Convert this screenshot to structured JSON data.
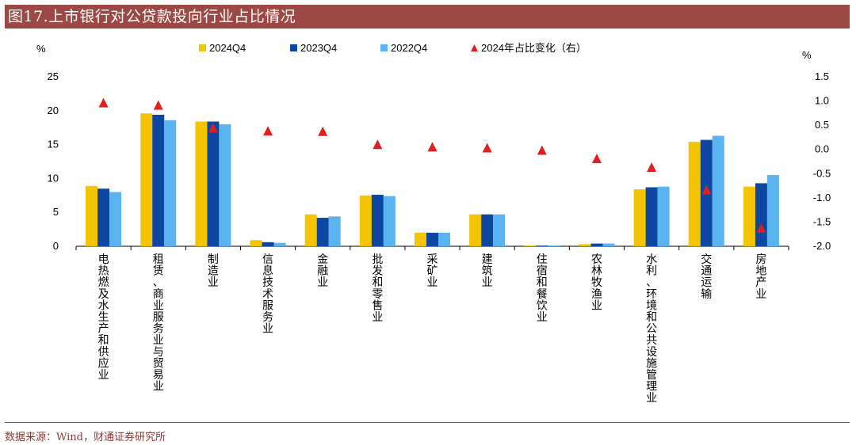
{
  "title": "图17.上市银行对公贷款投向行业占比情况",
  "source": "数据来源：Wind，财通证券研究所",
  "colors": {
    "header_bg": "#9c4845",
    "series_2024": "#f5c400",
    "series_2023": "#0d47a1",
    "series_2022": "#5ab4f0",
    "marker": "#e02020"
  },
  "chart_data": {
    "type": "bar",
    "ylabel_left": "%",
    "ylabel_right": "%",
    "ylim_left": [
      0,
      25
    ],
    "yticks_left": [
      "0",
      "5",
      "10",
      "15",
      "20",
      "25"
    ],
    "ylim_right": [
      -2.0,
      1.5
    ],
    "yticks_right": [
      "1.5",
      "1.0",
      "0.5",
      "0.0",
      "-0.5",
      "-1.0",
      "-1.5",
      "-2.0"
    ],
    "legend_position": "top",
    "grid": false,
    "categories": [
      "电热燃及水生产和供应业",
      "租赁、商业服务业与贸易业",
      "制造业",
      "信息技术服务业",
      "金融业",
      "批发和零售业",
      "采矿业",
      "建筑业",
      "住宿和餐饮业",
      "农林牧渔业",
      "水利、环境和公共设施管理业",
      "交通运输",
      "房地产业"
    ],
    "series": [
      {
        "name": "2024Q4",
        "axis": "left",
        "kind": "bar",
        "values": [
          8.9,
          19.6,
          18.4,
          0.9,
          4.7,
          7.5,
          2.0,
          4.7,
          0.1,
          0.3,
          8.4,
          15.4,
          8.8
        ]
      },
      {
        "name": "2023Q4",
        "axis": "left",
        "kind": "bar",
        "values": [
          8.5,
          19.4,
          18.4,
          0.6,
          4.2,
          7.6,
          2.0,
          4.7,
          0.1,
          0.4,
          8.7,
          15.7,
          9.3
        ]
      },
      {
        "name": "2022Q4",
        "axis": "left",
        "kind": "bar",
        "values": [
          8.0,
          18.6,
          18.0,
          0.5,
          4.4,
          7.4,
          2.0,
          4.7,
          0.1,
          0.4,
          8.8,
          16.3,
          10.5
        ]
      },
      {
        "name": "2024年占比变化（右）",
        "axis": "right",
        "kind": "marker",
        "values": [
          0.95,
          0.9,
          0.43,
          0.37,
          0.36,
          0.09,
          0.04,
          0.02,
          -0.03,
          -0.2,
          -0.38,
          -0.85,
          -1.64
        ]
      }
    ]
  }
}
